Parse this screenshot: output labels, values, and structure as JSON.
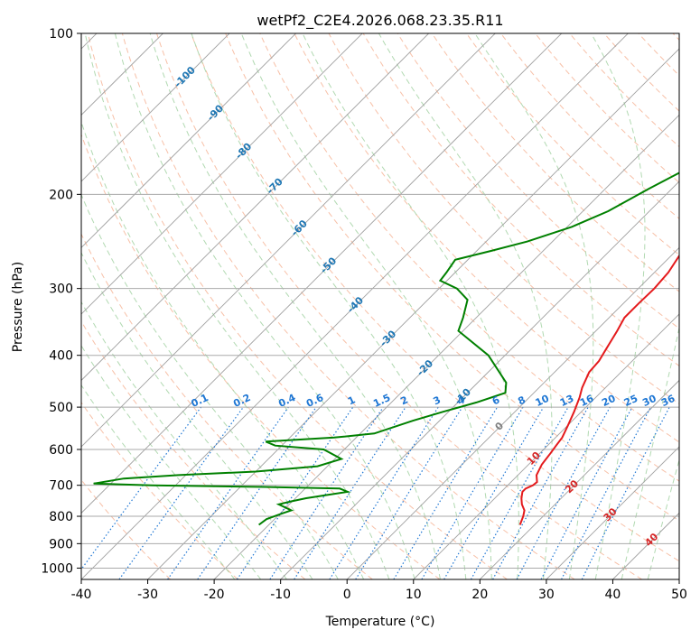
{
  "chart_data": {
    "type": "line",
    "title": "wetPf2_C2E4.2026.068.23.35.R11",
    "xlabel": "Temperature (°C)",
    "ylabel": "Pressure (hPa)",
    "xlim": [
      -40,
      50
    ],
    "ylim": [
      1050,
      100
    ],
    "y_scale": "log",
    "grid": true,
    "x_ticks": [
      -40,
      -30,
      -20,
      -10,
      0,
      10,
      20,
      30,
      40,
      50
    ],
    "y_ticks": [
      100,
      200,
      300,
      400,
      500,
      600,
      700,
      800,
      900,
      1000
    ],
    "colors": {
      "temperature": "#e41a1c",
      "dewpoint": "#008000",
      "grid": "#aaaaaa",
      "skew_isotherm": "#a0a0a0",
      "dry_adiabat": "#f4a582",
      "moist_adiabat": "#9ecf9e",
      "mixing_ratio": "#1f77d4",
      "isotherm_label": "#1f77b4",
      "frame": "#000000"
    },
    "series": [
      {
        "role": "temperature",
        "color": "#e41a1c",
        "x": [
          17.8,
          17.0,
          16.3,
          15.0,
          14.0,
          13.2,
          13.2,
          13.8,
          13.9,
          12.8,
          12.0,
          11.6,
          11.3,
          11.0,
          10.0,
          8.9,
          7.6,
          6.5,
          5.2,
          5.0,
          4.3,
          3.2,
          2.3,
          2.3,
          2.4,
          2.1,
          1.2,
          -0.4,
          -1.4,
          -2.1,
          -2.3,
          -1.2,
          0.6,
          3.4,
          5.7,
          7.5,
          8.5,
          9.0,
          9.5,
          10.2,
          10.5,
          10.8,
          11.2,
          11.8,
          12.1,
          12.9
        ],
        "y": [
          830,
          800,
          780,
          760,
          740,
          720,
          710,
          700,
          690,
          670,
          640,
          610,
          590,
          570,
          540,
          510,
          480,
          460,
          430,
          410,
          390,
          360,
          340,
          320,
          300,
          280,
          260,
          240,
          225,
          215,
          205,
          195,
          190,
          185,
          180,
          175,
          165,
          150,
          140,
          130,
          125,
          120,
          112,
          106,
          103,
          100
        ]
      },
      {
        "role": "dewpoint",
        "color": "#008000",
        "x": [
          -21.5,
          -21.2,
          -19.7,
          -18.8,
          -21.6,
          -20.1,
          -18.4,
          -15.8,
          -13.1,
          -14.8,
          -26.5,
          -43.5,
          -52.6,
          -48.8,
          -41.1,
          -30.0,
          -21.5,
          -19.0,
          -23.1,
          -31.0,
          -33.0,
          -23.3,
          -17.9,
          -14.0,
          -10.8,
          -7.2,
          -4.3,
          -5.7,
          -12.5,
          -20.7,
          -22.0,
          -24.0,
          -27.3,
          -31.0,
          -31.3,
          -31.9,
          -27.8,
          -23.8,
          -19.3,
          -16.2,
          -13.4,
          -10.0,
          -5.0,
          -4.3,
          -3.2,
          -1.7,
          0.0
        ],
        "y": [
          830,
          810,
          790,
          780,
          760,
          750,
          740,
          730,
          720,
          710,
          705,
          700,
          695,
          680,
          670,
          660,
          645,
          625,
          600,
          590,
          580,
          570,
          560,
          530,
          510,
          490,
          470,
          450,
          400,
          360,
          340,
          315,
          300,
          290,
          280,
          265,
          255,
          245,
          230,
          215,
          195,
          175,
          155,
          140,
          125,
          110,
          100
        ]
      }
    ],
    "isotherm_labels": [
      "-100",
      "-90",
      "-80",
      "-70",
      "-60",
      "-50",
      "-40",
      "-30",
      "-20",
      "-10",
      "0",
      "10",
      "20",
      "30",
      "40"
    ],
    "mixing_ratio_labels": [
      "0.1",
      "0.2",
      "0.4",
      "0.6",
      "1",
      "1.5",
      "2",
      "3",
      "4",
      "6",
      "8",
      "10",
      "13",
      "16",
      "20",
      "25",
      "30",
      "36"
    ]
  }
}
